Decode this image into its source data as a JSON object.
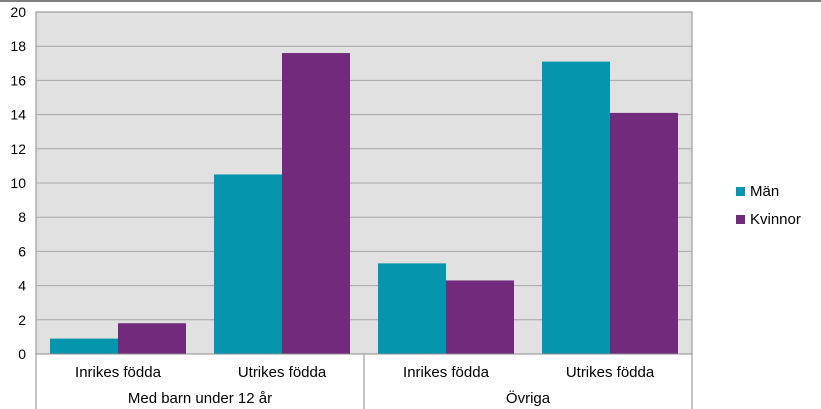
{
  "chart_data": {
    "type": "bar",
    "groups": [
      {
        "label": "Med barn under 12 år",
        "categories": [
          "Inrikes födda",
          "Utrikes födda"
        ]
      },
      {
        "label": "Övriga",
        "categories": [
          "Inrikes födda",
          "Utrikes födda"
        ]
      }
    ],
    "series": [
      {
        "name": "Män",
        "color": "#0596AE",
        "values": [
          0.9,
          10.5,
          5.3,
          17.1
        ]
      },
      {
        "name": "Kvinnor",
        "color": "#722A7C",
        "values": [
          1.8,
          17.6,
          4.3,
          14.1
        ]
      }
    ],
    "ylim": [
      0,
      20
    ],
    "yticks": [
      "0",
      "2",
      "4",
      "6",
      "8",
      "10",
      "12",
      "14",
      "16",
      "18",
      "20"
    ],
    "grid": true,
    "legend_position": "right"
  }
}
